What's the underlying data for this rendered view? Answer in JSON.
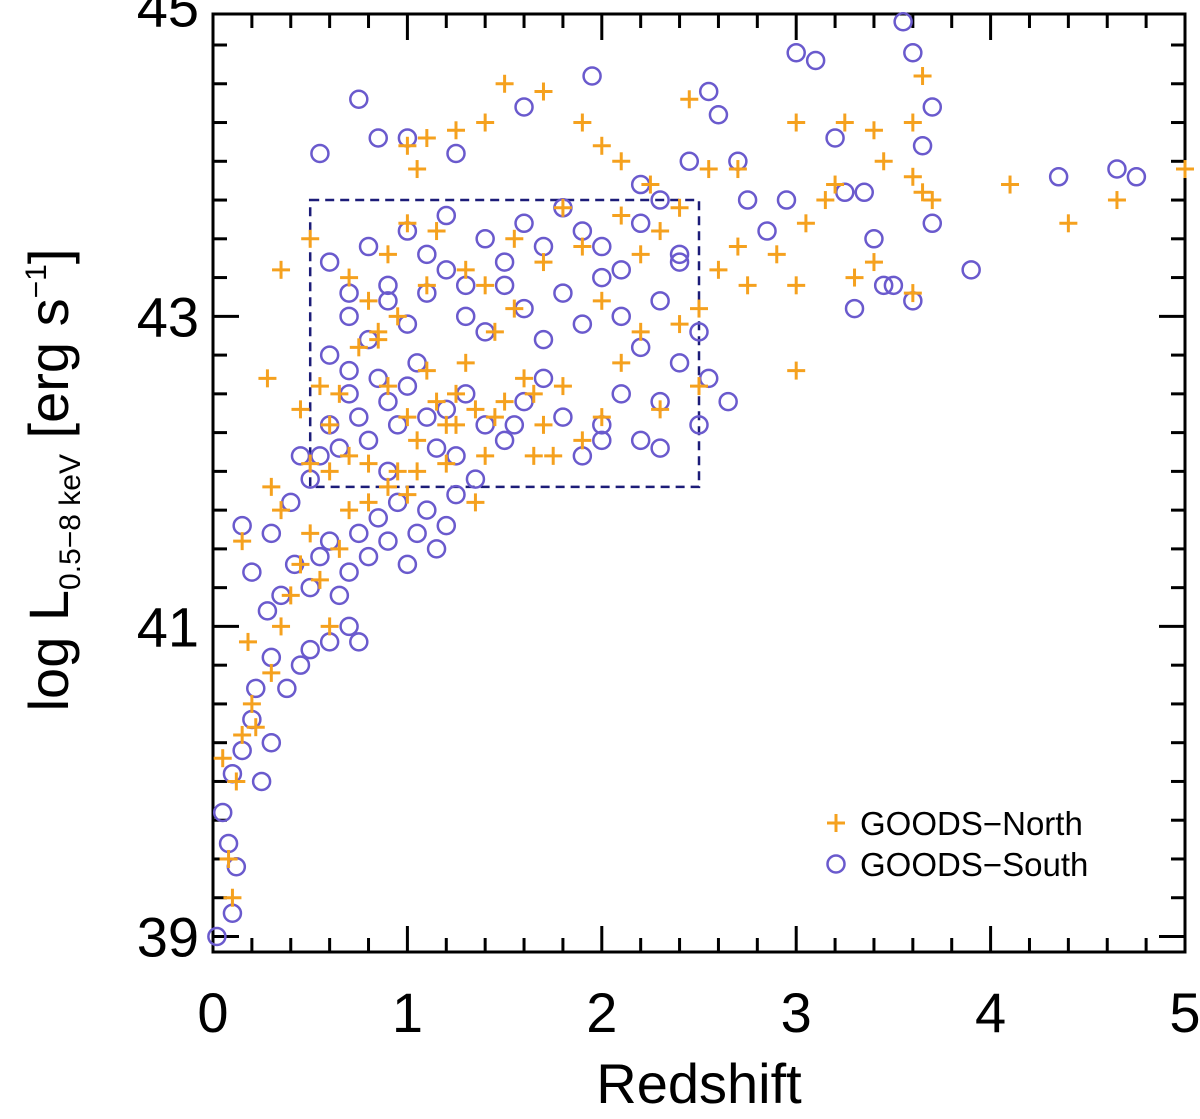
{
  "chart_data": {
    "type": "scatter",
    "xlabel": "Redshift",
    "ylabel": {
      "prefix": "log L",
      "subscript": "0.5−8 keV",
      "unit_open": " [erg s",
      "unit_exp": "−1",
      "unit_close": "]"
    },
    "xlim": [
      0,
      5
    ],
    "ylim": [
      38.9,
      44.95
    ],
    "x_ticks": [
      0,
      1,
      2,
      3,
      4,
      5
    ],
    "y_ticks": [
      39,
      41,
      43,
      45
    ],
    "x_tick_labels": [
      "0",
      "1",
      "2",
      "3",
      "4",
      "5"
    ],
    "y_tick_labels": [
      "39",
      "41",
      "43",
      "45"
    ],
    "legend_position": "bottom-right",
    "selection_box": {
      "x": [
        0.5,
        2.5
      ],
      "y": [
        41.9,
        43.75
      ],
      "style": "dashed",
      "color": "#1c1c78"
    },
    "series": [
      {
        "name": "GOODS−North",
        "marker": "plus",
        "color": "#f5a11e",
        "points": [
          [
            0.05,
            40.15
          ],
          [
            0.08,
            39.5
          ],
          [
            0.1,
            39.25
          ],
          [
            0.12,
            40.0
          ],
          [
            0.15,
            40.3
          ],
          [
            0.2,
            40.5
          ],
          [
            0.18,
            40.9
          ],
          [
            0.22,
            40.35
          ],
          [
            0.3,
            40.7
          ],
          [
            0.35,
            41.0
          ],
          [
            0.4,
            41.2
          ],
          [
            0.45,
            41.4
          ],
          [
            0.5,
            41.6
          ],
          [
            0.55,
            41.3
          ],
          [
            0.6,
            41.0
          ],
          [
            0.65,
            41.5
          ],
          [
            0.7,
            41.75
          ],
          [
            0.8,
            41.8
          ],
          [
            0.9,
            41.9
          ],
          [
            0.95,
            42.0
          ],
          [
            1.0,
            41.85
          ],
          [
            0.3,
            41.9
          ],
          [
            0.35,
            41.75
          ],
          [
            0.15,
            41.55
          ],
          [
            0.28,
            42.6
          ],
          [
            0.45,
            42.4
          ],
          [
            0.5,
            42.05
          ],
          [
            0.55,
            42.55
          ],
          [
            0.6,
            42.3
          ],
          [
            0.7,
            42.1
          ],
          [
            0.75,
            42.8
          ],
          [
            0.8,
            43.1
          ],
          [
            0.85,
            42.85
          ],
          [
            0.9,
            42.55
          ],
          [
            0.95,
            43.0
          ],
          [
            1.0,
            42.35
          ],
          [
            1.05,
            42.0
          ],
          [
            1.1,
            42.65
          ],
          [
            1.15,
            42.45
          ],
          [
            1.2,
            42.3
          ],
          [
            1.25,
            42.5
          ],
          [
            1.3,
            42.7
          ],
          [
            1.35,
            42.4
          ],
          [
            1.4,
            42.1
          ],
          [
            1.45,
            42.9
          ],
          [
            1.5,
            42.45
          ],
          [
            1.55,
            43.05
          ],
          [
            1.6,
            42.6
          ],
          [
            1.65,
            42.5
          ],
          [
            1.7,
            42.3
          ],
          [
            1.75,
            42.1
          ],
          [
            1.8,
            42.55
          ],
          [
            1.9,
            42.2
          ],
          [
            2.0,
            42.35
          ],
          [
            2.1,
            42.7
          ],
          [
            2.2,
            42.9
          ],
          [
            2.3,
            42.4
          ],
          [
            2.4,
            42.95
          ],
          [
            2.5,
            42.55
          ],
          [
            0.35,
            43.3
          ],
          [
            0.5,
            43.5
          ],
          [
            0.7,
            43.25
          ],
          [
            0.9,
            43.4
          ],
          [
            1.0,
            43.6
          ],
          [
            1.1,
            43.2
          ],
          [
            1.15,
            43.55
          ],
          [
            1.3,
            43.3
          ],
          [
            1.4,
            43.2
          ],
          [
            1.55,
            43.5
          ],
          [
            1.7,
            43.35
          ],
          [
            1.8,
            43.7
          ],
          [
            1.9,
            43.45
          ],
          [
            2.0,
            43.1
          ],
          [
            2.1,
            43.65
          ],
          [
            2.2,
            43.4
          ],
          [
            2.3,
            43.55
          ],
          [
            2.4,
            43.7
          ],
          [
            2.5,
            43.05
          ],
          [
            2.6,
            43.3
          ],
          [
            2.7,
            43.45
          ],
          [
            2.75,
            43.2
          ],
          [
            2.9,
            43.4
          ],
          [
            3.0,
            43.2
          ],
          [
            3.05,
            43.6
          ],
          [
            3.15,
            43.75
          ],
          [
            3.2,
            43.85
          ],
          [
            3.3,
            43.25
          ],
          [
            3.4,
            43.35
          ],
          [
            3.45,
            44.0
          ],
          [
            3.6,
            43.15
          ],
          [
            3.65,
            43.8
          ],
          [
            3.7,
            43.75
          ],
          [
            1.0,
            44.1
          ],
          [
            1.05,
            43.95
          ],
          [
            1.1,
            44.15
          ],
          [
            1.25,
            44.2
          ],
          [
            1.4,
            44.25
          ],
          [
            1.5,
            44.5
          ],
          [
            1.7,
            44.45
          ],
          [
            1.9,
            44.25
          ],
          [
            2.0,
            44.1
          ],
          [
            2.1,
            44.0
          ],
          [
            2.25,
            43.85
          ],
          [
            2.45,
            44.4
          ],
          [
            2.55,
            43.95
          ],
          [
            2.7,
            43.95
          ],
          [
            3.0,
            44.25
          ],
          [
            3.25,
            44.25
          ],
          [
            3.4,
            44.2
          ],
          [
            3.6,
            44.25
          ],
          [
            3.65,
            44.55
          ],
          [
            3.6,
            43.9
          ],
          [
            3.0,
            42.65
          ],
          [
            4.1,
            43.85
          ],
          [
            4.4,
            43.6
          ],
          [
            4.65,
            43.75
          ],
          [
            5.0,
            43.95
          ],
          [
            0.6,
            42.0
          ],
          [
            0.8,
            42.05
          ],
          [
            1.2,
            42.05
          ],
          [
            1.35,
            41.8
          ],
          [
            1.05,
            42.2
          ],
          [
            0.65,
            42.5
          ],
          [
            0.85,
            42.9
          ],
          [
            1.25,
            42.3
          ],
          [
            1.45,
            42.35
          ],
          [
            1.65,
            42.1
          ]
        ]
      },
      {
        "name": "GOODS−South",
        "marker": "circle",
        "color": "#6a5acd",
        "points": [
          [
            0.02,
            39.0
          ],
          [
            0.1,
            39.15
          ],
          [
            0.12,
            39.45
          ],
          [
            0.08,
            39.6
          ],
          [
            0.05,
            39.8
          ],
          [
            0.1,
            40.05
          ],
          [
            0.15,
            40.2
          ],
          [
            0.2,
            40.4
          ],
          [
            0.25,
            40.0
          ],
          [
            0.3,
            40.25
          ],
          [
            0.22,
            40.6
          ],
          [
            0.3,
            40.8
          ],
          [
            0.38,
            40.6
          ],
          [
            0.45,
            40.75
          ],
          [
            0.5,
            40.85
          ],
          [
            0.6,
            40.9
          ],
          [
            0.7,
            41.0
          ],
          [
            0.75,
            40.9
          ],
          [
            0.15,
            41.65
          ],
          [
            0.2,
            41.35
          ],
          [
            0.28,
            41.1
          ],
          [
            0.35,
            41.2
          ],
          [
            0.42,
            41.4
          ],
          [
            0.5,
            41.25
          ],
          [
            0.55,
            41.45
          ],
          [
            0.6,
            41.55
          ],
          [
            0.65,
            41.2
          ],
          [
            0.7,
            41.35
          ],
          [
            0.75,
            41.6
          ],
          [
            0.8,
            41.45
          ],
          [
            0.85,
            41.7
          ],
          [
            0.9,
            41.55
          ],
          [
            0.95,
            41.8
          ],
          [
            1.0,
            41.4
          ],
          [
            1.05,
            41.6
          ],
          [
            1.1,
            41.75
          ],
          [
            1.15,
            41.5
          ],
          [
            1.2,
            41.65
          ],
          [
            1.25,
            41.85
          ],
          [
            0.3,
            41.6
          ],
          [
            0.4,
            41.8
          ],
          [
            0.5,
            41.95
          ],
          [
            0.55,
            42.1
          ],
          [
            0.6,
            42.3
          ],
          [
            0.65,
            42.15
          ],
          [
            0.7,
            42.5
          ],
          [
            0.75,
            42.35
          ],
          [
            0.8,
            42.2
          ],
          [
            0.85,
            42.6
          ],
          [
            0.9,
            42.45
          ],
          [
            0.95,
            42.3
          ],
          [
            1.0,
            42.55
          ],
          [
            1.05,
            42.7
          ],
          [
            1.1,
            42.35
          ],
          [
            1.15,
            42.15
          ],
          [
            1.2,
            42.4
          ],
          [
            1.3,
            42.5
          ],
          [
            1.4,
            42.3
          ],
          [
            1.5,
            42.2
          ],
          [
            1.6,
            42.45
          ],
          [
            1.7,
            42.6
          ],
          [
            1.8,
            42.35
          ],
          [
            1.9,
            42.1
          ],
          [
            2.0,
            42.3
          ],
          [
            2.1,
            42.5
          ],
          [
            2.2,
            42.2
          ],
          [
            2.3,
            42.45
          ],
          [
            2.4,
            42.7
          ],
          [
            2.5,
            42.3
          ],
          [
            0.6,
            42.75
          ],
          [
            0.7,
            43.0
          ],
          [
            0.8,
            42.85
          ],
          [
            0.9,
            43.1
          ],
          [
            1.0,
            42.95
          ],
          [
            1.1,
            43.15
          ],
          [
            1.2,
            43.3
          ],
          [
            1.3,
            43.0
          ],
          [
            1.4,
            42.9
          ],
          [
            1.5,
            43.2
          ],
          [
            1.6,
            43.05
          ],
          [
            1.7,
            42.85
          ],
          [
            1.8,
            43.15
          ],
          [
            1.9,
            42.95
          ],
          [
            2.0,
            43.25
          ],
          [
            2.1,
            43.0
          ],
          [
            2.2,
            42.8
          ],
          [
            2.3,
            43.1
          ],
          [
            2.4,
            43.35
          ],
          [
            2.5,
            42.9
          ],
          [
            0.6,
            43.35
          ],
          [
            0.7,
            43.15
          ],
          [
            0.8,
            43.45
          ],
          [
            0.9,
            43.2
          ],
          [
            1.0,
            43.55
          ],
          [
            1.1,
            43.4
          ],
          [
            1.2,
            43.65
          ],
          [
            1.3,
            43.2
          ],
          [
            1.4,
            43.5
          ],
          [
            1.5,
            43.35
          ],
          [
            1.6,
            43.6
          ],
          [
            1.7,
            43.45
          ],
          [
            1.8,
            43.7
          ],
          [
            1.9,
            43.55
          ],
          [
            2.0,
            43.45
          ],
          [
            2.1,
            43.3
          ],
          [
            2.2,
            43.6
          ],
          [
            2.3,
            43.75
          ],
          [
            2.4,
            43.4
          ],
          [
            0.55,
            44.05
          ],
          [
            0.75,
            44.4
          ],
          [
            0.85,
            44.15
          ],
          [
            1.0,
            44.15
          ],
          [
            1.25,
            44.05
          ],
          [
            1.6,
            44.35
          ],
          [
            1.95,
            44.55
          ],
          [
            2.2,
            43.85
          ],
          [
            2.45,
            44.0
          ],
          [
            2.55,
            44.45
          ],
          [
            2.6,
            44.3
          ],
          [
            2.7,
            44.0
          ],
          [
            2.75,
            43.75
          ],
          [
            2.85,
            43.55
          ],
          [
            2.95,
            43.75
          ],
          [
            3.0,
            44.7
          ],
          [
            3.1,
            44.65
          ],
          [
            3.2,
            44.15
          ],
          [
            3.25,
            43.8
          ],
          [
            3.3,
            43.05
          ],
          [
            3.35,
            43.8
          ],
          [
            3.4,
            43.5
          ],
          [
            3.45,
            43.2
          ],
          [
            3.5,
            43.2
          ],
          [
            3.55,
            44.9
          ],
          [
            3.6,
            44.7
          ],
          [
            3.65,
            44.1
          ],
          [
            3.6,
            43.1
          ],
          [
            3.7,
            44.35
          ],
          [
            3.7,
            43.6
          ],
          [
            3.9,
            43.3
          ],
          [
            4.35,
            43.9
          ],
          [
            4.65,
            43.95
          ],
          [
            4.75,
            43.9
          ],
          [
            2.55,
            42.6
          ],
          [
            2.65,
            42.45
          ],
          [
            2.3,
            42.15
          ],
          [
            2.0,
            42.2
          ],
          [
            1.55,
            42.3
          ],
          [
            1.25,
            42.1
          ],
          [
            0.45,
            42.1
          ],
          [
            0.7,
            42.65
          ],
          [
            0.9,
            42.0
          ],
          [
            1.35,
            41.95
          ]
        ]
      }
    ]
  }
}
